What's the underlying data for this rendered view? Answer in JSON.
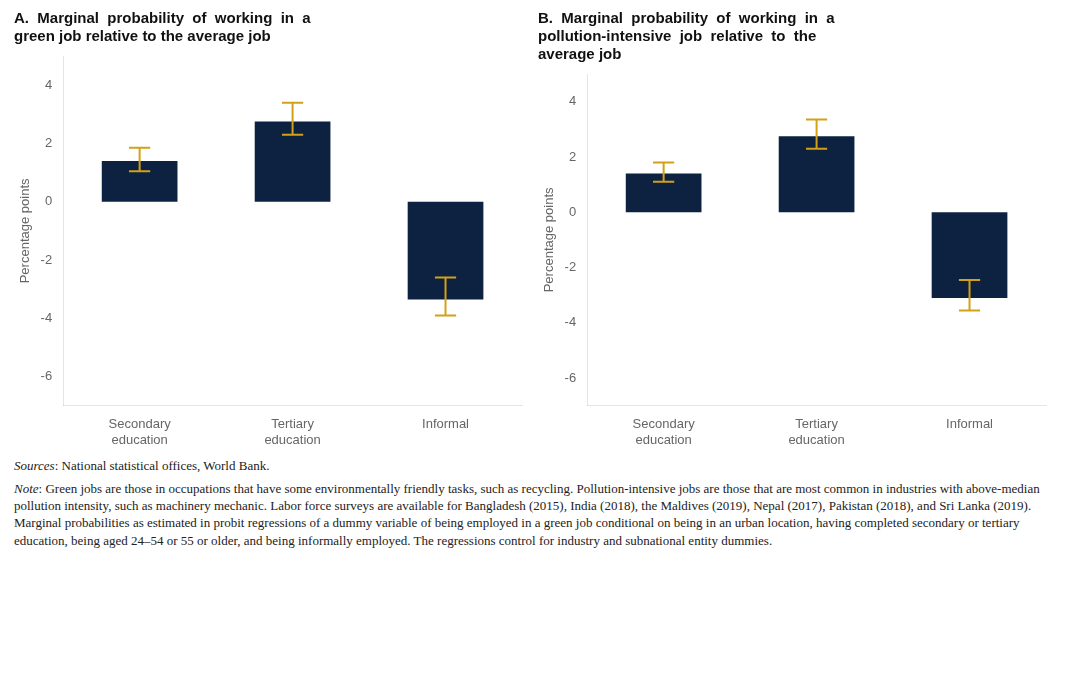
{
  "chart_data": [
    {
      "type": "bar",
      "title": "A.  Marginal  probability  of  working  in  a\ngreen job relative to the average job",
      "categories": [
        "Secondary\neducation",
        "Tertiary\neducation",
        "Informal"
      ],
      "values": [
        1.4,
        2.75,
        -3.35
      ],
      "yerr_lower": [
        0.35,
        0.45,
        0.55
      ],
      "yerr_upper": [
        0.45,
        0.65,
        0.75
      ],
      "color": "#0d2240",
      "ylabel": "Percentage points",
      "ylim": [
        -7,
        5
      ],
      "yticks": [
        -6,
        -4,
        -2,
        0,
        2,
        4
      ],
      "grid": false
    },
    {
      "type": "bar",
      "title": "B.  Marginal  probability  of  working  in  a\npollution-intensive  job  relative  to  the\naverage job",
      "categories": [
        "Secondary\neducation",
        "Tertiary\neducation",
        "Informal"
      ],
      "values": [
        1.4,
        2.75,
        -3.1
      ],
      "yerr_lower": [
        0.3,
        0.45,
        0.45
      ],
      "yerr_upper": [
        0.4,
        0.6,
        0.65
      ],
      "color": "#0d2240",
      "ylabel": "Percentage points",
      "ylim": [
        -7,
        5
      ],
      "yticks": [
        -6,
        -4,
        -2,
        0,
        2,
        4
      ],
      "grid": false
    }
  ],
  "annotations": [
    "Sources: National statistical offices, World Bank.",
    "Note: Green jobs are those in occupations that have some environmentally friendly tasks, such as recycling. Pollution-intensive jobs are those that are most common in industries with above-median pollution intensity, such as machinery mechanic. Labor force surveys are available for Bangladesh (2015), India (2018), the Maldives (2019), Nepal (2017), Pakistan (2018), and Sri Lanka (2019). Marginal probabilities as estimated in probit regressions of a dummy variable of being employed in a green job conditional on being in an urban location, having completed secondary or tertiary education, being aged 24–54 or 55 or older, and being informally employed. The regressions control for industry and subnational entity dummies."
  ]
}
